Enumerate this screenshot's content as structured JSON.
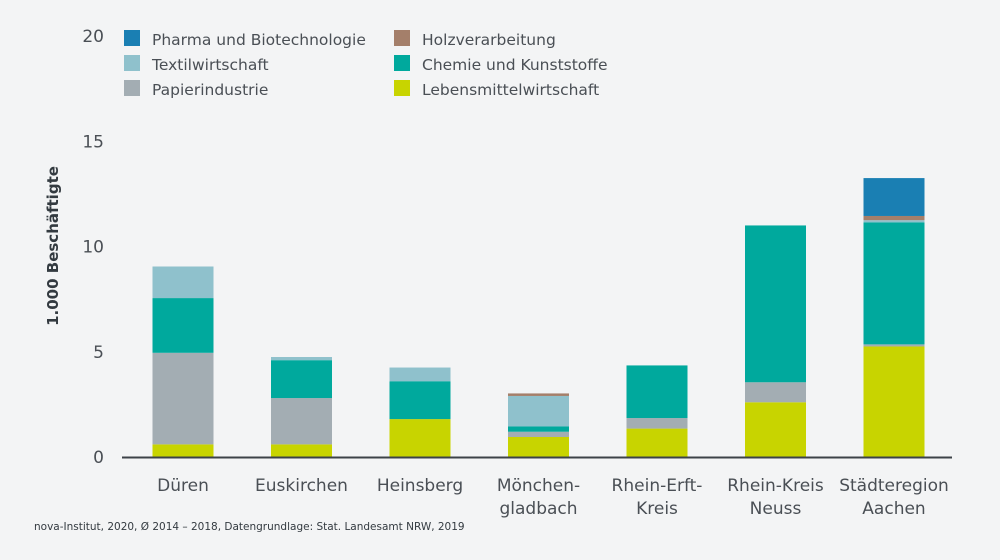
{
  "chart_data": {
    "type": "bar",
    "stacked": true,
    "ylabel": "1.000 Beschäftigte",
    "ylim": [
      0,
      20
    ],
    "yticks": [
      "0",
      "5",
      "10",
      "15",
      "20"
    ],
    "grid": false,
    "legend_position": "top-left",
    "categories": [
      [
        "Düren"
      ],
      [
        "Euskirchen"
      ],
      [
        "Heinsberg"
      ],
      [
        "Mönchen-",
        "gladbach"
      ],
      [
        "Rhein-Erft-",
        "Kreis"
      ],
      [
        "Rhein-Kreis",
        "Neuss"
      ],
      [
        "Städteregion",
        "Aachen"
      ]
    ],
    "series": [
      {
        "name": "Lebensmittelwirtschaft",
        "color": "#c8d400",
        "values": [
          0.6,
          0.6,
          1.8,
          0.95,
          1.35,
          2.6,
          5.25
        ]
      },
      {
        "name": "Papierindustrie",
        "color": "#a3adb3",
        "values": [
          4.35,
          2.2,
          0,
          0.25,
          0.5,
          0.95,
          0.1
        ]
      },
      {
        "name": "Chemie und Kunststoffe",
        "color": "#00a99d",
        "values": [
          2.6,
          1.8,
          1.8,
          0.25,
          2.5,
          7.45,
          5.8
        ]
      },
      {
        "name": "Textilwirtschaft",
        "color": "#8fc1cc",
        "values": [
          1.5,
          0.15,
          0.65,
          1.45,
          0,
          0,
          0.1
        ]
      },
      {
        "name": "Holzverarbeitung",
        "color": "#a47f6a",
        "values": [
          0,
          0,
          0,
          0.12,
          0,
          0,
          0.2
        ]
      },
      {
        "name": "Pharma und Biotechnologie",
        "color": "#1a7fb3",
        "values": [
          0,
          0,
          0,
          0,
          0,
          0,
          1.8
        ]
      }
    ],
    "legend_order": [
      "Pharma und Biotechnologie",
      "Textilwirtschaft",
      "Papierindustrie",
      "Holzverarbeitung",
      "Chemie und Kunststoffe",
      "Lebensmittelwirtschaft"
    ]
  },
  "source_note": "nova-Institut, 2020, Ø 2014 – 2018, Datengrundlage: Stat. Landesamt NRW, 2019"
}
